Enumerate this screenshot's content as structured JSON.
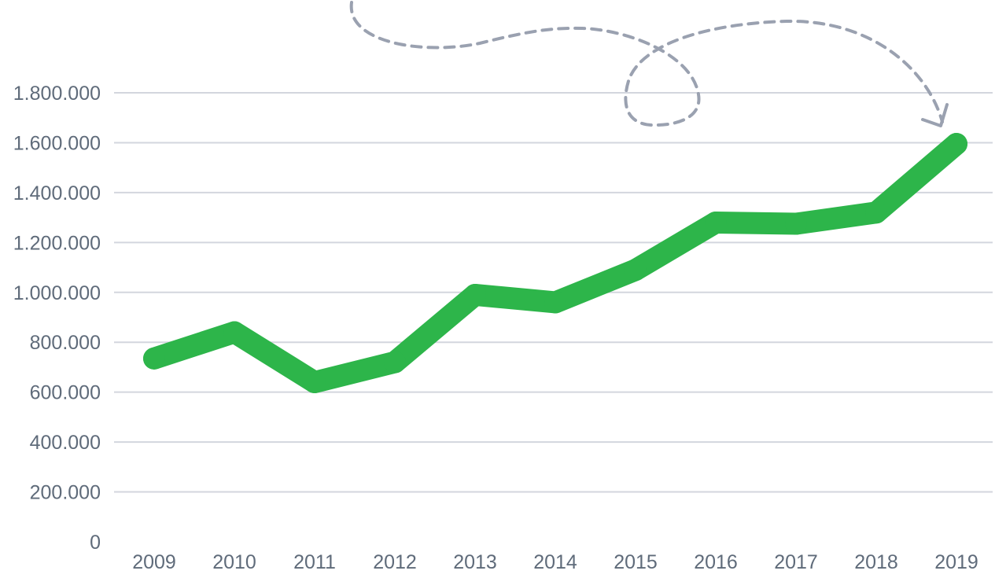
{
  "chart_data": {
    "type": "line",
    "categories": [
      "2009",
      "2010",
      "2011",
      "2012",
      "2013",
      "2014",
      "2015",
      "2016",
      "2017",
      "2018",
      "2019"
    ],
    "series": [
      {
        "values": [
          735000,
          840000,
          640000,
          720000,
          990000,
          960000,
          1090000,
          1280000,
          1275000,
          1320000,
          1595000
        ]
      }
    ],
    "yticks": [
      0,
      200000,
      400000,
      600000,
      800000,
      1000000,
      1200000,
      1400000,
      1600000,
      1800000
    ],
    "ytick_labels": [
      "0",
      "200.000",
      "400.000",
      "600.000",
      "800.000",
      "1.000.000",
      "1.200.000",
      "1.400.000",
      "1.600.000",
      "1.800.000"
    ],
    "ylim": [
      0,
      1800000
    ],
    "grid": true,
    "legend": "none",
    "colors": {
      "series": "#2db54a",
      "grid": "#d3d6de",
      "text": "#5f6b7a",
      "annotation": "#9aa1b0"
    },
    "annotation": {
      "type": "dashed-curly-arrow",
      "points_to": "2019"
    }
  }
}
